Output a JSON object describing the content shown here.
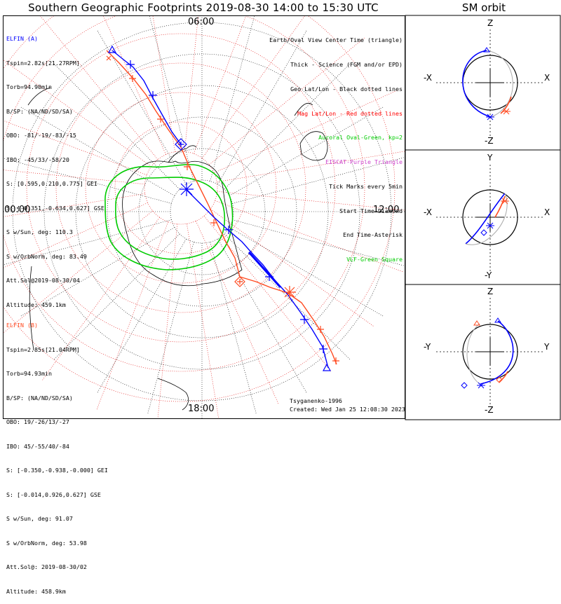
{
  "title": "Southern Geographic Footprints 2019-08-30 14:00 to 15:30 UTC",
  "sm_title": "SM orbit",
  "mlt_labels": {
    "top": "06:00",
    "left": "00:00",
    "right": "12:00",
    "bottom": "18:00"
  },
  "colors": {
    "elfin_a": "#0000ff",
    "elfin_b": "#ff4000",
    "oval": "#00cc00",
    "geo_grid": "#000000",
    "mag_grid": "#ff0000"
  },
  "elfin_a": {
    "lines": [
      "ELFIN (A)",
      "Tspin=2.82s[21.27RPM]",
      "Torb=94.90min",
      "B/SP: (NA/ND/SD/SA)",
      "OBO: -81/-19/-83/-15",
      "IBO: -45/33/-58/20",
      "S: [0.595,0.210,0.775] GEI",
      "S: [-0.351,-0.634,0.627] GSE",
      "S w/Sun, deg: 110.3",
      "S w/OrbNorm, deg: 83.49",
      "Att.Sol@2019-08-30/04",
      "Altitude: 459.1km"
    ]
  },
  "elfin_b": {
    "lines": [
      "ELFIN (B)",
      "Tspin=2.85s[21.04RPM]",
      "Torb=94.93min",
      "B/SP: (NA/ND/SD/SA)",
      "OBO: 19/-26/13/-27",
      "IBO: 45/-55/40/-84",
      "S: [-0.350,-0.938,-0.000] GEI",
      "S: [-0.014,0.926,0.627] GSE",
      "S w/Sun, deg: 91.07",
      "S w/OrbNorm, deg: 53.98",
      "Att.Sol@: 2019-08-30/02",
      "Altitude: 458.9km"
    ]
  },
  "legend": [
    {
      "text": "Earth/Oval View Center Time (triangle)",
      "color": "#000000"
    },
    {
      "text": "Thick - Science (FGM and/or EPD)",
      "color": "#000000"
    },
    {
      "text": "Geo Lat/Lon - Black dotted lines",
      "color": "#000000"
    },
    {
      "text": "Mag Lat/Lon - Red dotted lines",
      "color": "#ff0000"
    },
    {
      "text": "Auroral Oval-Green, kp=2",
      "color": "#00cc00"
    },
    {
      "text": "EISCAT-Purple Triangle",
      "color": "#cc44cc"
    },
    {
      "text": "Tick Marks every 5min",
      "color": "#000000"
    },
    {
      "text": "Start Time-Diamond",
      "color": "#000000"
    },
    {
      "text": "End Time-Asterisk",
      "color": "#000000"
    },
    {
      "text": "VLF-Green Square",
      "color": "#00cc00"
    }
  ],
  "footer": {
    "model": "Tsyganenko-1996",
    "created": "Created: Wed Jan 25 12:08:30 2023"
  },
  "sm_panels": [
    {
      "top": "Z",
      "bottom": "-Z",
      "left": "-X",
      "right": "X"
    },
    {
      "top": "Y",
      "bottom": "-Y",
      "left": "-X",
      "right": "X"
    },
    {
      "top": "Z",
      "bottom": "-Z",
      "left": "-Y",
      "right": "Y"
    }
  ]
}
